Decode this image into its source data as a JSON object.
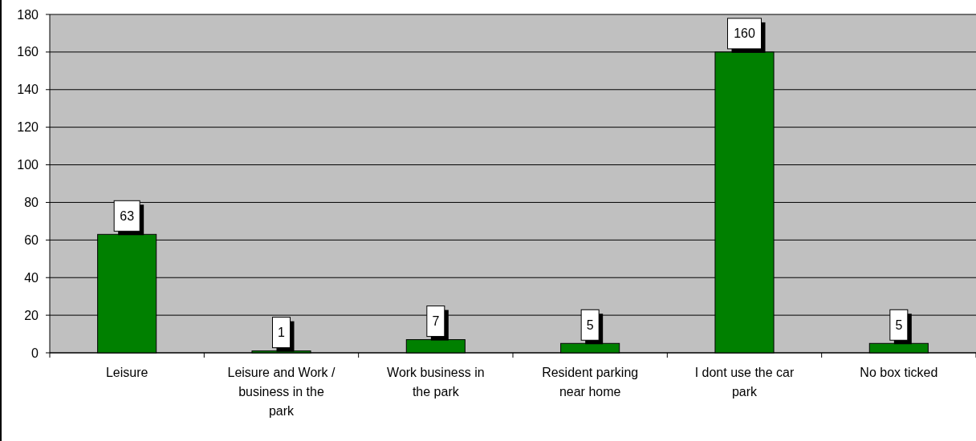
{
  "chart_data": {
    "type": "bar",
    "categories": [
      "Leisure",
      "Leisure and Work / business in the park",
      "Work business in the park",
      "Resident parking near home",
      "I dont use the car park",
      "No box ticked"
    ],
    "values": [
      63,
      1,
      7,
      5,
      160,
      5
    ],
    "color": "#008000",
    "ylim": [
      0,
      180
    ],
    "yticks": [
      0,
      20,
      40,
      60,
      80,
      100,
      120,
      140,
      160,
      180
    ],
    "grid": "y",
    "data_labels": true
  }
}
